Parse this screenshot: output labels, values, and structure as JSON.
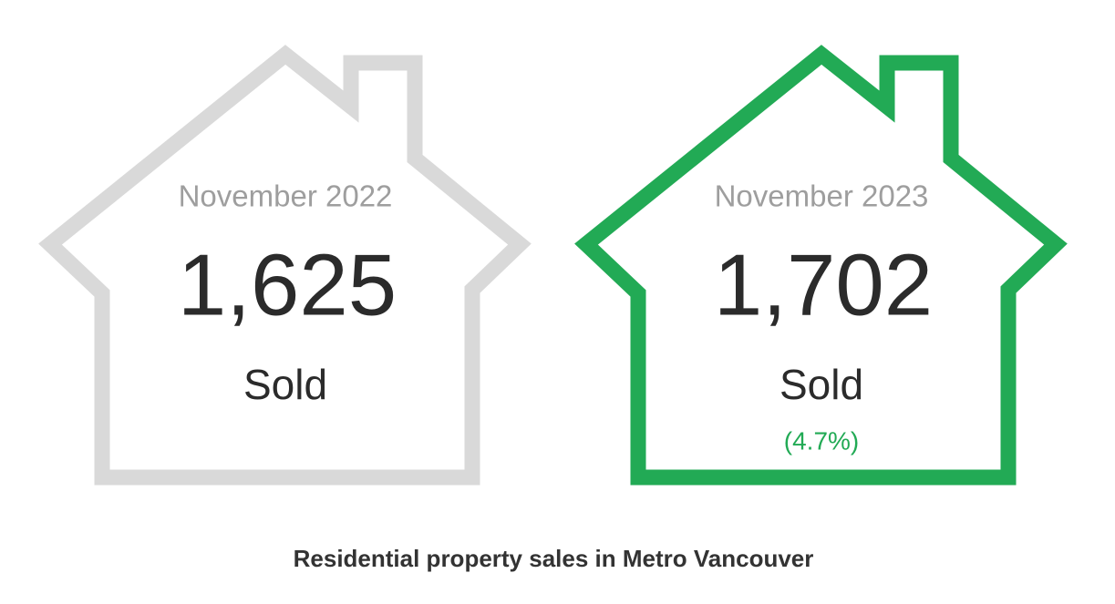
{
  "cards": [
    {
      "period": "November 2022",
      "value": "1,625",
      "label": "Sold"
    },
    {
      "period": "November 2023",
      "value": "1,702",
      "label": "Sold",
      "change": "(4.7%)"
    }
  ],
  "caption": "Residential property sales in Metro Vancouver"
}
